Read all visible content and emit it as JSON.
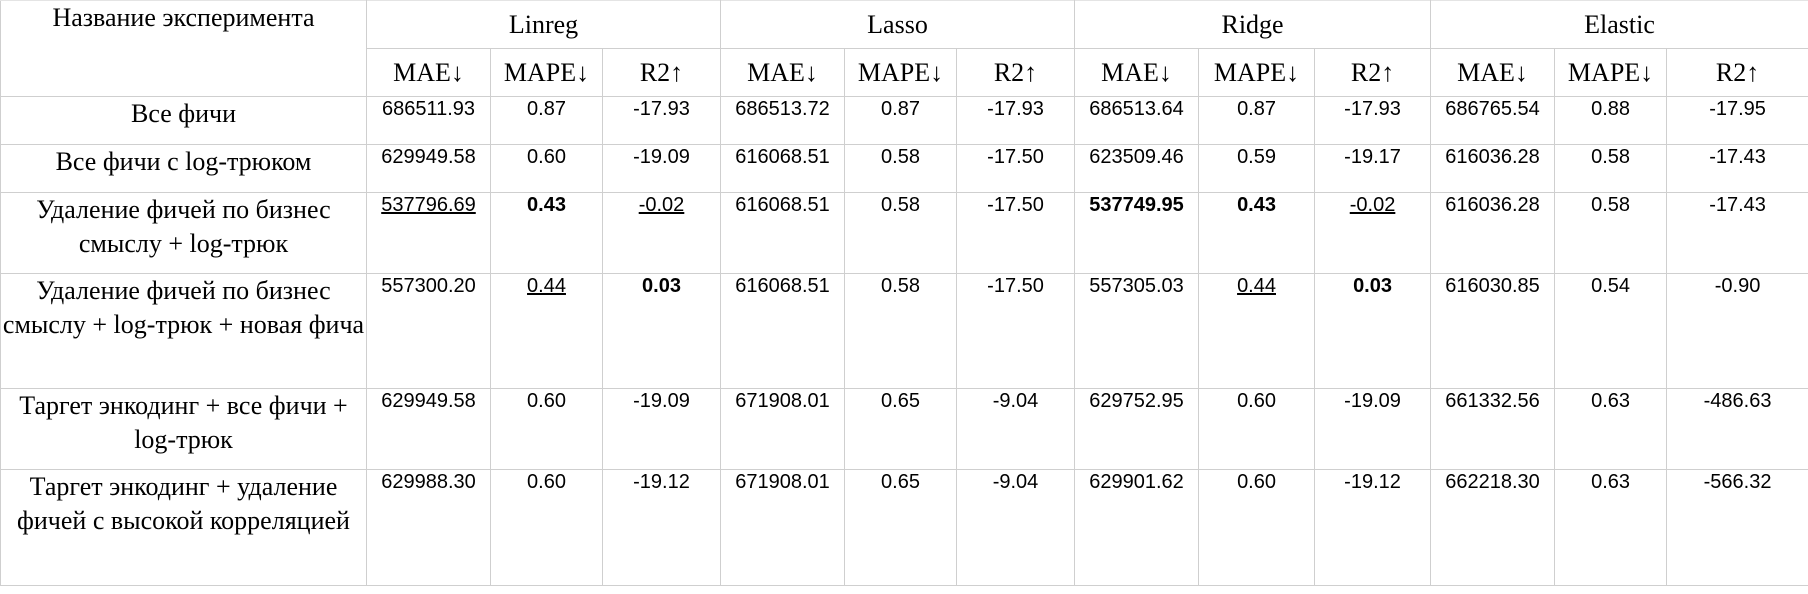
{
  "table": {
    "header": {
      "experiment_label": "Название эксперимента",
      "models": [
        "Linreg",
        "Lasso",
        "Ridge",
        "Elastic"
      ],
      "metrics": [
        "MAE↓",
        "MAPE↓",
        "R2↑"
      ]
    },
    "rows": [
      {
        "name": "Все фичи",
        "cells": [
          {
            "v": "686511.93",
            "s": ""
          },
          {
            "v": "0.87",
            "s": ""
          },
          {
            "v": "-17.93",
            "s": ""
          },
          {
            "v": "686513.72",
            "s": ""
          },
          {
            "v": "0.87",
            "s": ""
          },
          {
            "v": "-17.93",
            "s": ""
          },
          {
            "v": "686513.64",
            "s": ""
          },
          {
            "v": "0.87",
            "s": ""
          },
          {
            "v": "-17.93",
            "s": ""
          },
          {
            "v": "686765.54",
            "s": ""
          },
          {
            "v": "0.88",
            "s": ""
          },
          {
            "v": "-17.95",
            "s": ""
          }
        ]
      },
      {
        "name": "Все фичи с log-трюком",
        "cells": [
          {
            "v": "629949.58",
            "s": ""
          },
          {
            "v": "0.60",
            "s": ""
          },
          {
            "v": "-19.09",
            "s": ""
          },
          {
            "v": "616068.51",
            "s": ""
          },
          {
            "v": "0.58",
            "s": ""
          },
          {
            "v": "-17.50",
            "s": ""
          },
          {
            "v": "623509.46",
            "s": ""
          },
          {
            "v": "0.59",
            "s": ""
          },
          {
            "v": "-19.17",
            "s": ""
          },
          {
            "v": "616036.28",
            "s": ""
          },
          {
            "v": "0.58",
            "s": ""
          },
          {
            "v": "-17.43",
            "s": ""
          }
        ]
      },
      {
        "name": "Удаление фичей по бизнес смыслу +  log-трюк",
        "cells": [
          {
            "v": "537796.69",
            "s": "under"
          },
          {
            "v": "0.43",
            "s": "bold"
          },
          {
            "v": "-0.02",
            "s": "under"
          },
          {
            "v": "616068.51",
            "s": ""
          },
          {
            "v": "0.58",
            "s": ""
          },
          {
            "v": "-17.50",
            "s": ""
          },
          {
            "v": "537749.95",
            "s": "bold"
          },
          {
            "v": "0.43",
            "s": "bold"
          },
          {
            "v": "-0.02",
            "s": "under"
          },
          {
            "v": "616036.28",
            "s": ""
          },
          {
            "v": "0.58",
            "s": ""
          },
          {
            "v": "-17.43",
            "s": ""
          }
        ]
      },
      {
        "name": "Удаление фичей по бизнес смыслу +  log-трюк + новая фича",
        "cells": [
          {
            "v": "557300.20",
            "s": ""
          },
          {
            "v": "0.44",
            "s": "under"
          },
          {
            "v": "0.03",
            "s": "bold"
          },
          {
            "v": "616068.51",
            "s": ""
          },
          {
            "v": "0.58",
            "s": ""
          },
          {
            "v": "-17.50",
            "s": ""
          },
          {
            "v": "557305.03",
            "s": ""
          },
          {
            "v": "0.44",
            "s": "under"
          },
          {
            "v": "0.03",
            "s": "bold"
          },
          {
            "v": "616030.85",
            "s": ""
          },
          {
            "v": "0.54",
            "s": ""
          },
          {
            "v": "-0.90",
            "s": ""
          }
        ]
      },
      {
        "name": "Таргет энкодинг + все фичи + log-трюк",
        "cells": [
          {
            "v": "629949.58",
            "s": ""
          },
          {
            "v": "0.60",
            "s": ""
          },
          {
            "v": "-19.09",
            "s": ""
          },
          {
            "v": "671908.01",
            "s": ""
          },
          {
            "v": "0.65",
            "s": ""
          },
          {
            "v": "-9.04",
            "s": ""
          },
          {
            "v": "629752.95",
            "s": ""
          },
          {
            "v": "0.60",
            "s": ""
          },
          {
            "v": "-19.09",
            "s": ""
          },
          {
            "v": "661332.56",
            "s": ""
          },
          {
            "v": "0.63",
            "s": ""
          },
          {
            "v": "-486.63",
            "s": ""
          }
        ]
      },
      {
        "name": "Таргет энкодинг + удаление фичей с высокой корреляцией",
        "cells": [
          {
            "v": "629988.30",
            "s": ""
          },
          {
            "v": "0.60",
            "s": ""
          },
          {
            "v": "-19.12",
            "s": ""
          },
          {
            "v": "671908.01",
            "s": ""
          },
          {
            "v": "0.65",
            "s": ""
          },
          {
            "v": "-9.04",
            "s": ""
          },
          {
            "v": "629901.62",
            "s": ""
          },
          {
            "v": "0.60",
            "s": ""
          },
          {
            "v": "-19.12",
            "s": ""
          },
          {
            "v": "662218.30",
            "s": ""
          },
          {
            "v": "0.63",
            "s": ""
          },
          {
            "v": "-566.32",
            "s": ""
          }
        ]
      }
    ]
  },
  "colors": {
    "border": "#cfcfcf",
    "text": "#000000",
    "background": "#ffffff"
  }
}
